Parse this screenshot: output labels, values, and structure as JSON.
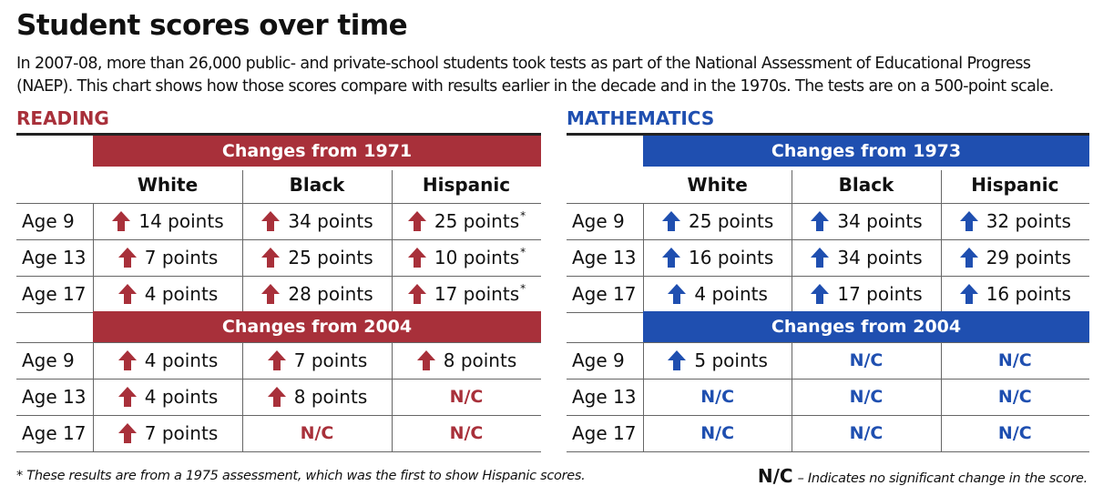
{
  "title": "Student scores over time",
  "intro": [
    "In 2007-08, more than 26,000 public- and private-school students took tests as part of the National Assessment of Educational Progress",
    "(NAEP). This chart shows how those scores compare with results earlier in the decade and in the 1970s. The tests are on a 500-point scale."
  ],
  "colors": {
    "reading": "#a8303a",
    "math": "#1f4fb0"
  },
  "icons": {
    "increase": "up-arrow-icon"
  },
  "footnote": "* These results are from a 1975 assessment, which was the first to show Hispanic scores.",
  "nc_note": {
    "key": "N/C",
    "text": "– Indicates no significant change in the score."
  },
  "chart_data": [
    {
      "type": "table",
      "subject": "READING",
      "columns": [
        "White",
        "Black",
        "Hispanic"
      ],
      "groups": [
        {
          "header": "Changes from 1971",
          "rows": [
            {
              "label": "Age 9",
              "cells": [
                {
                  "text": "14 points",
                  "up": true
                },
                {
                  "text": "34 points",
                  "up": true
                },
                {
                  "text": "25 points",
                  "up": true,
                  "note": "*"
                }
              ]
            },
            {
              "label": "Age 13",
              "cells": [
                {
                  "text": "7 points",
                  "up": true
                },
                {
                  "text": "25 points",
                  "up": true
                },
                {
                  "text": "10 points",
                  "up": true,
                  "note": "*"
                }
              ]
            },
            {
              "label": "Age 17",
              "cells": [
                {
                  "text": "4 points",
                  "up": true
                },
                {
                  "text": "28 points",
                  "up": true
                },
                {
                  "text": "17 points",
                  "up": true,
                  "note": "*"
                }
              ]
            }
          ]
        },
        {
          "header": "Changes from 2004",
          "rows": [
            {
              "label": "Age 9",
              "cells": [
                {
                  "text": "4 points",
                  "up": true
                },
                {
                  "text": "7 points",
                  "up": true
                },
                {
                  "text": "8 points",
                  "up": true
                }
              ]
            },
            {
              "label": "Age 13",
              "cells": [
                {
                  "text": "4 points",
                  "up": true
                },
                {
                  "text": "8 points",
                  "up": true
                },
                {
                  "text": "N/C",
                  "nc": true
                }
              ]
            },
            {
              "label": "Age 17",
              "cells": [
                {
                  "text": "7 points",
                  "up": true
                },
                {
                  "text": "N/C",
                  "nc": true
                },
                {
                  "text": "N/C",
                  "nc": true
                }
              ]
            }
          ]
        }
      ]
    },
    {
      "type": "table",
      "subject": "MATHEMATICS",
      "columns": [
        "White",
        "Black",
        "Hispanic"
      ],
      "groups": [
        {
          "header": "Changes from 1973",
          "rows": [
            {
              "label": "Age 9",
              "cells": [
                {
                  "text": "25 points",
                  "up": true
                },
                {
                  "text": "34 points",
                  "up": true
                },
                {
                  "text": "32 points",
                  "up": true
                }
              ]
            },
            {
              "label": "Age 13",
              "cells": [
                {
                  "text": "16 points",
                  "up": true
                },
                {
                  "text": "34 points",
                  "up": true
                },
                {
                  "text": "29 points",
                  "up": true
                }
              ]
            },
            {
              "label": "Age 17",
              "cells": [
                {
                  "text": "4 points",
                  "up": true
                },
                {
                  "text": "17 points",
                  "up": true
                },
                {
                  "text": "16 points",
                  "up": true
                }
              ]
            }
          ]
        },
        {
          "header": "Changes from 2004",
          "rows": [
            {
              "label": "Age 9",
              "cells": [
                {
                  "text": "5 points",
                  "up": true
                },
                {
                  "text": "N/C",
                  "nc": true
                },
                {
                  "text": "N/C",
                  "nc": true
                }
              ]
            },
            {
              "label": "Age 13",
              "cells": [
                {
                  "text": "N/C",
                  "nc": true
                },
                {
                  "text": "N/C",
                  "nc": true
                },
                {
                  "text": "N/C",
                  "nc": true
                }
              ]
            },
            {
              "label": "Age 17",
              "cells": [
                {
                  "text": "N/C",
                  "nc": true
                },
                {
                  "text": "N/C",
                  "nc": true
                },
                {
                  "text": "N/C",
                  "nc": true
                }
              ]
            }
          ]
        }
      ]
    }
  ]
}
